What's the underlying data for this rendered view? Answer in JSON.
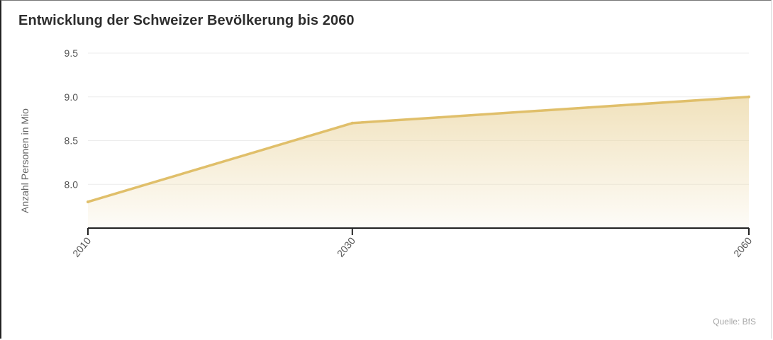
{
  "chart_data": {
    "type": "area",
    "title": "Entwicklung der Schweizer Bevölkerung bis 2060",
    "xlabel": "",
    "ylabel": "Anzahl Personen in Mio",
    "x": [
      "2010",
      "2030",
      "2060"
    ],
    "values": [
      7.8,
      8.7,
      9.0
    ],
    "yticks": [
      "8.0",
      "8.5",
      "9.0",
      "9.5"
    ],
    "ylim": [
      7.5,
      9.5
    ],
    "grid": true,
    "legend": "none",
    "colors": {
      "line": "#e0bf6a",
      "fill": "#ecd8a6",
      "grid": "#ececec",
      "axis": "#222222"
    }
  },
  "source": "Quelle: BfS"
}
